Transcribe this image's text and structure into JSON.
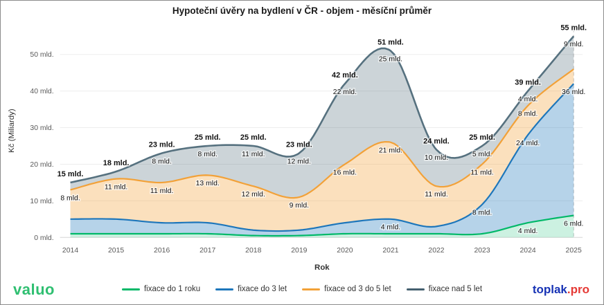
{
  "title": "Hypoteční úvěry na bydlení v ČR - objem - měsíční průměr",
  "chart_data": {
    "type": "area",
    "stacked": true,
    "categories": [
      "2014",
      "2015",
      "2016",
      "2017",
      "2018",
      "2019",
      "2020",
      "2021",
      "2022",
      "2023",
      "2024",
      "2025"
    ],
    "series": [
      {
        "name": "fixace do 1 roku",
        "color": "#00b868",
        "fill": "rgba(0,184,104,0.20)",
        "values": [
          1,
          1,
          1,
          1,
          0.5,
          0.5,
          1,
          1,
          1,
          1,
          4,
          6
        ]
      },
      {
        "name": "fixace do 3 let",
        "color": "#1d76bb",
        "fill": "rgba(29,118,187,0.32)",
        "values": [
          4,
          4,
          3,
          3,
          1.5,
          1.5,
          3,
          4,
          2,
          8,
          24,
          36
        ]
      },
      {
        "name": "fixace od 3 do 5 let",
        "color": "#f2a138",
        "fill": "rgba(242,161,56,0.33)",
        "values": [
          8,
          11,
          11,
          13,
          12,
          9,
          16,
          21,
          11,
          11,
          8,
          4
        ]
      },
      {
        "name": "fixace nad 5 let",
        "color": "#56717f",
        "fill": "rgba(86,113,127,0.30)",
        "values": [
          2,
          2,
          8,
          8,
          11,
          12,
          22,
          25,
          10,
          5,
          4,
          9
        ]
      }
    ],
    "totals": [
      15,
      18,
      23,
      25,
      25,
      23,
      42,
      51,
      24,
      25,
      39,
      55
    ],
    "yticks": [
      "0 mld.",
      "10 mld.",
      "20 mld.",
      "30 mld.",
      "40 mld.",
      "50 mld."
    ],
    "xlabel": "Rok",
    "ylabel": "Kč (Miliardy)",
    "ylim": [
      0,
      57
    ],
    "grid": true,
    "legend_position": "bottom",
    "point_labels": [
      {
        "i": 0,
        "band": "total",
        "text": "15 mld."
      },
      {
        "i": 0,
        "band": "orange",
        "text": "8 mld."
      },
      {
        "i": 1,
        "band": "total",
        "text": "18 mld."
      },
      {
        "i": 1,
        "band": "orange",
        "text": "11 mld."
      },
      {
        "i": 2,
        "band": "total",
        "text": "23 mld."
      },
      {
        "i": 2,
        "band": "gray",
        "text": "8 mld."
      },
      {
        "i": 2,
        "band": "orange",
        "text": "11 mld."
      },
      {
        "i": 3,
        "band": "total",
        "text": "25 mld."
      },
      {
        "i": 3,
        "band": "gray",
        "text": "8 mld."
      },
      {
        "i": 3,
        "band": "orange",
        "text": "13 mld."
      },
      {
        "i": 4,
        "band": "total",
        "text": "25 mld."
      },
      {
        "i": 4,
        "band": "gray",
        "text": "11 mld."
      },
      {
        "i": 4,
        "band": "orange",
        "text": "12 mld."
      },
      {
        "i": 5,
        "band": "total",
        "text": "23 mld."
      },
      {
        "i": 5,
        "band": "gray",
        "text": "12 mld."
      },
      {
        "i": 5,
        "band": "orange",
        "text": "9 mld."
      },
      {
        "i": 6,
        "band": "total",
        "text": "42 mld."
      },
      {
        "i": 6,
        "band": "gray",
        "text": "22 mld."
      },
      {
        "i": 6,
        "band": "orange",
        "text": "16 mld."
      },
      {
        "i": 7,
        "band": "total",
        "text": "51 mld."
      },
      {
        "i": 7,
        "band": "gray",
        "text": "25 mld."
      },
      {
        "i": 7,
        "band": "orange",
        "text": "21 mld."
      },
      {
        "i": 7,
        "band": "blue",
        "text": "4 mld."
      },
      {
        "i": 8,
        "band": "total",
        "text": "24 mld."
      },
      {
        "i": 8,
        "band": "gray",
        "text": "10 mld."
      },
      {
        "i": 8,
        "band": "orange",
        "text": "11 mld."
      },
      {
        "i": 9,
        "band": "total",
        "text": "25 mld."
      },
      {
        "i": 9,
        "band": "gray",
        "text": "5 mld."
      },
      {
        "i": 9,
        "band": "orange",
        "text": "11 mld."
      },
      {
        "i": 9,
        "band": "blue",
        "text": "8 mld."
      },
      {
        "i": 10,
        "band": "total",
        "text": "39 mld."
      },
      {
        "i": 10,
        "band": "gray",
        "text": "4 mld."
      },
      {
        "i": 10,
        "band": "orange",
        "text": "8 mld."
      },
      {
        "i": 10,
        "band": "blue",
        "text": "24 mld."
      },
      {
        "i": 10,
        "band": "green",
        "text": "4 mld."
      },
      {
        "i": 11,
        "band": "total",
        "text": "55 mld."
      },
      {
        "i": 11,
        "band": "gray",
        "text": "9 mld."
      },
      {
        "i": 11,
        "band": "blue",
        "text": "36 mld."
      },
      {
        "i": 11,
        "band": "green",
        "text": "6 mld."
      }
    ]
  },
  "legend": {
    "items": [
      {
        "label": "fixace do 1 roku",
        "color": "#00b868"
      },
      {
        "label": "fixace do 3 let",
        "color": "#1d76bb"
      },
      {
        "label": "fixace od 3 do 5 let",
        "color": "#f2a138"
      },
      {
        "label": "fixace nad 5 let",
        "color": "#44606f"
      }
    ]
  },
  "footer": {
    "brand_left": "valuo",
    "brand_right_primary": "toplak",
    "brand_right_secondary": ".pro"
  }
}
